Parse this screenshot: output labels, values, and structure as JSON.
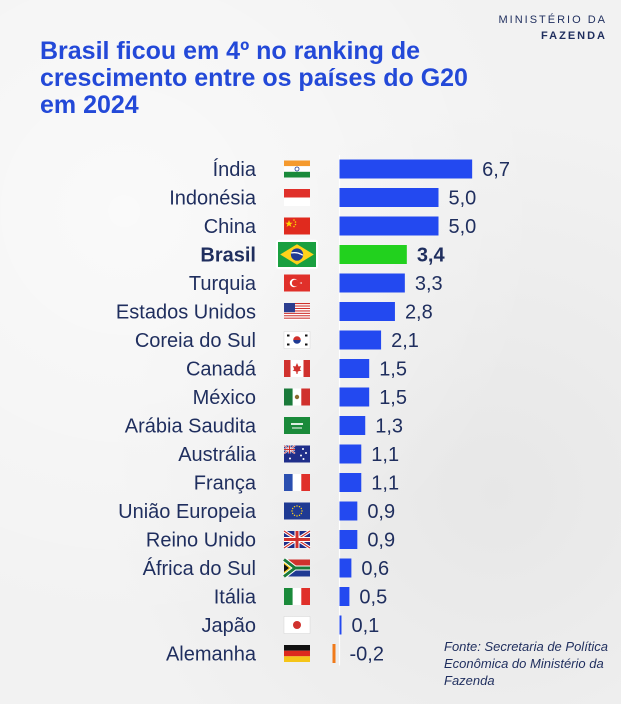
{
  "brand": {
    "line1": "MINISTÉRIO DA",
    "line2": "FAZENDA"
  },
  "title": "Brasil ficou em 4º no ranking de crescimento entre os países do G20 em 2024",
  "source": "Fonte: Secretaria de Política Econômica do Ministério da Fazenda",
  "colors": {
    "bar": "#2349f0",
    "highlight": "#22d11e",
    "negative": "#f07a1a",
    "label": "#1f2e5e",
    "title": "#2349d8"
  },
  "chart_data": {
    "type": "bar",
    "orientation": "horizontal",
    "title": "Brasil ficou em 4º no ranking de crescimento entre os países do G20 em 2024",
    "categories": [
      "Índia",
      "Indonésia",
      "China",
      "Brasil",
      "Turquia",
      "Estados Unidos",
      "Coreia do Sul",
      "Canadá",
      "México",
      "Arábia Saudita",
      "Austrália",
      "França",
      "União Europeia",
      "Reino Unido",
      "África do Sul",
      "Itália",
      "Japão",
      "Alemanha"
    ],
    "values": [
      6.7,
      5.0,
      5.0,
      3.4,
      3.3,
      2.8,
      2.1,
      1.5,
      1.5,
      1.3,
      1.1,
      1.1,
      0.9,
      0.9,
      0.6,
      0.5,
      0.1,
      -0.2
    ],
    "value_labels": [
      "6,7",
      "5,0",
      "5,0",
      "3,4",
      "3,3",
      "2,8",
      "2,1",
      "1,5",
      "1,5",
      "1,3",
      "1,1",
      "1,1",
      "0,9",
      "0,9",
      "0,6",
      "0,5",
      "0,1",
      "-0,2"
    ],
    "highlight": "Brasil",
    "flags": [
      "india-flag",
      "indonesia-flag",
      "china-flag",
      "brazil-flag",
      "turkey-flag",
      "usa-flag",
      "south-korea-flag",
      "canada-flag",
      "mexico-flag",
      "saudi-arabia-flag",
      "australia-flag",
      "france-flag",
      "european-union-flag",
      "united-kingdom-flag",
      "south-africa-flag",
      "italy-flag",
      "japan-flag",
      "germany-flag"
    ],
    "xlim": [
      -0.2,
      6.7
    ],
    "grid": false,
    "xlabel": "",
    "ylabel": ""
  }
}
